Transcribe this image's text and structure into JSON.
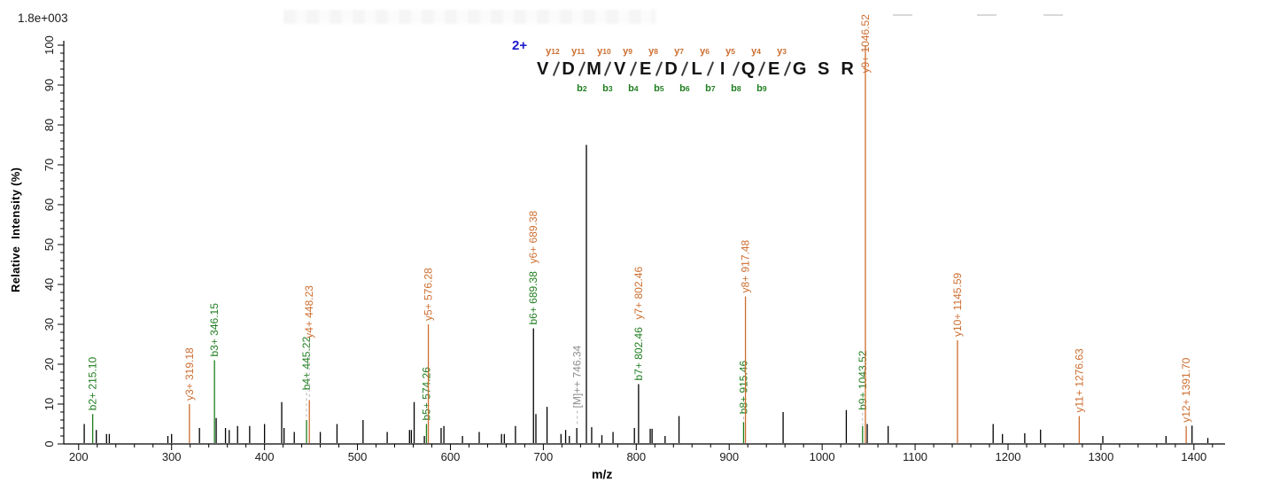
{
  "chart_data": {
    "type": "bar",
    "subtype": "ms2-mass-spectrum",
    "title": "",
    "xlabel": "m/z",
    "ylabel": "Relative  Intensity (%)",
    "base_peak_intensity": "1.8e+003",
    "xlim": [
      184,
      1434
    ],
    "ylim": [
      0,
      100
    ],
    "x_ticks": {
      "major_start": 200,
      "major_end": 1400,
      "major_step": 100,
      "minor_step": 20,
      "minor_end": 1420
    },
    "y_ticks": {
      "major_step": 10,
      "minor_step": 2
    },
    "grid": "off",
    "colors": {
      "b_ion": "#1e7d1e",
      "y_ion": "#cc6d2f",
      "unmatched": "#000000",
      "precursor_label": "#8c8c8c",
      "leader": "#b5b5b5",
      "charge": "#1a1acc"
    },
    "peptide": {
      "charge_label": "2+",
      "sequence": [
        "V",
        "D",
        "M",
        "V",
        "E",
        "D",
        "L",
        "I",
        "Q",
        "E",
        "G",
        "S",
        "R"
      ],
      "boundaries": [
        {
          "pos": 1,
          "y": "y12"
        },
        {
          "pos": 2,
          "y": "y11",
          "b": "b2"
        },
        {
          "pos": 3,
          "y": "y10",
          "b": "b3"
        },
        {
          "pos": 4,
          "y": "y9",
          "b": "b4"
        },
        {
          "pos": 5,
          "y": "y8",
          "b": "b5"
        },
        {
          "pos": 6,
          "y": "y7",
          "b": "b6"
        },
        {
          "pos": 7,
          "y": "y6",
          "b": "b7"
        },
        {
          "pos": 8,
          "y": "y5",
          "b": "b8"
        },
        {
          "pos": 9,
          "y": "y4",
          "b": "b9"
        },
        {
          "pos": 10,
          "y": "y3"
        }
      ]
    },
    "peaks": [
      {
        "mz": 206,
        "h": 5,
        "type": "none"
      },
      {
        "mz": 215.1,
        "h": 7.5,
        "type": "b",
        "label": "b2+ 215.10"
      },
      {
        "mz": 219,
        "h": 3.5,
        "type": "none"
      },
      {
        "mz": 230,
        "h": 2.5,
        "type": "none"
      },
      {
        "mz": 233,
        "h": 2.5,
        "type": "none"
      },
      {
        "mz": 296,
        "h": 2,
        "type": "none"
      },
      {
        "mz": 300,
        "h": 2.5,
        "type": "none"
      },
      {
        "mz": 319.18,
        "h": 10,
        "type": "y",
        "label": "y3+ 319.18"
      },
      {
        "mz": 330,
        "h": 4,
        "type": "none"
      },
      {
        "mz": 346.15,
        "h": 21,
        "type": "b",
        "label": "b3+ 346.15"
      },
      {
        "mz": 348,
        "h": 6.5,
        "type": "none"
      },
      {
        "mz": 358,
        "h": 4,
        "type": "none"
      },
      {
        "mz": 362,
        "h": 3.5,
        "type": "none"
      },
      {
        "mz": 371,
        "h": 4.5,
        "type": "none"
      },
      {
        "mz": 384,
        "h": 4.5,
        "type": "none"
      },
      {
        "mz": 400,
        "h": 5,
        "type": "none"
      },
      {
        "mz": 418.5,
        "h": 10.5,
        "type": "none"
      },
      {
        "mz": 421,
        "h": 4,
        "type": "none"
      },
      {
        "mz": 432,
        "h": 3,
        "type": "none"
      },
      {
        "mz": 445.22,
        "h": 6,
        "type": "b",
        "label": "b4+ 445.22",
        "label_h": 13.5,
        "leader": true
      },
      {
        "mz": 448.23,
        "h": 11,
        "type": "y",
        "label": "y4+ 448.23",
        "label_h": 26.5,
        "leader": true
      },
      {
        "mz": 460,
        "h": 3,
        "type": "none"
      },
      {
        "mz": 478,
        "h": 5,
        "type": "none"
      },
      {
        "mz": 506,
        "h": 6,
        "type": "none"
      },
      {
        "mz": 532,
        "h": 3,
        "type": "none"
      },
      {
        "mz": 556,
        "h": 3.5,
        "type": "none"
      },
      {
        "mz": 558,
        "h": 3.5,
        "type": "none"
      },
      {
        "mz": 561,
        "h": 10.5,
        "type": "none"
      },
      {
        "mz": 572,
        "h": 2,
        "type": "none"
      },
      {
        "mz": 574.26,
        "h": 5,
        "type": "b",
        "label": "b5+ 574.26"
      },
      {
        "mz": 576.28,
        "h": 30,
        "type": "y",
        "label": "y5+ 576.28"
      },
      {
        "mz": 590,
        "h": 4,
        "type": "none"
      },
      {
        "mz": 593,
        "h": 4.5,
        "type": "none"
      },
      {
        "mz": 613,
        "h": 2,
        "type": "none"
      },
      {
        "mz": 631,
        "h": 3,
        "type": "none"
      },
      {
        "mz": 655,
        "h": 2.5,
        "type": "none"
      },
      {
        "mz": 658,
        "h": 2.5,
        "type": "none"
      },
      {
        "mz": 670,
        "h": 4.5,
        "type": "none"
      },
      {
        "mz": 689.38,
        "h": 29,
        "type": "both",
        "label": "b6+ 689.38",
        "label2": "y6+ 689.38"
      },
      {
        "mz": 692,
        "h": 7.5,
        "type": "none"
      },
      {
        "mz": 704,
        "h": 9.3,
        "type": "none"
      },
      {
        "mz": 719,
        "h": 2.5,
        "type": "none"
      },
      {
        "mz": 724,
        "h": 3.5,
        "type": "none"
      },
      {
        "mz": 728,
        "h": 2,
        "type": "none"
      },
      {
        "mz": 736,
        "h": 4,
        "type": "none"
      },
      {
        "mz": 746.34,
        "h": 75,
        "type": "precursor",
        "label": "[M]++ 746.34",
        "label_h": 9,
        "leader": true,
        "label_mz": 736.5,
        "leader_end_h": 4.5
      },
      {
        "mz": 752,
        "h": 4.2,
        "type": "none"
      },
      {
        "mz": 763,
        "h": 2.2,
        "type": "none"
      },
      {
        "mz": 775,
        "h": 3,
        "type": "none"
      },
      {
        "mz": 798,
        "h": 4,
        "type": "none"
      },
      {
        "mz": 802.46,
        "h": 15,
        "type": "both",
        "label": "b7+ 802.46",
        "label2": "y7+ 802.46"
      },
      {
        "mz": 815,
        "h": 3.8,
        "type": "none"
      },
      {
        "mz": 817,
        "h": 3.8,
        "type": "none"
      },
      {
        "mz": 831,
        "h": 2,
        "type": "none"
      },
      {
        "mz": 846,
        "h": 7,
        "type": "none"
      },
      {
        "mz": 915.46,
        "h": 5.5,
        "type": "b",
        "label": "b8+ 915.46",
        "label_h": 7.5,
        "leader": true
      },
      {
        "mz": 917.48,
        "h": 37,
        "type": "y",
        "label": "y8+ 917.48"
      },
      {
        "mz": 958,
        "h": 8,
        "type": "none"
      },
      {
        "mz": 1026,
        "h": 8.5,
        "type": "none"
      },
      {
        "mz": 1043.52,
        "h": 4.5,
        "type": "b",
        "label": "b9+ 1043.52",
        "label_h": 8.5,
        "leader": true
      },
      {
        "mz": 1046.52,
        "h": 100,
        "type": "y",
        "label": "y9+ 1046.52",
        "label_h": 93
      },
      {
        "mz": 1048.5,
        "h": 5,
        "type": "none"
      },
      {
        "mz": 1071,
        "h": 4.5,
        "type": "none"
      },
      {
        "mz": 1145.59,
        "h": 26,
        "type": "y",
        "label": "y10+ 1145.59"
      },
      {
        "mz": 1184,
        "h": 5,
        "type": "none"
      },
      {
        "mz": 1194,
        "h": 2.5,
        "type": "none"
      },
      {
        "mz": 1218,
        "h": 2.7,
        "type": "none"
      },
      {
        "mz": 1235,
        "h": 3.6,
        "type": "none"
      },
      {
        "mz": 1276.63,
        "h": 7,
        "type": "y",
        "label": "y11+ 1276.63"
      },
      {
        "mz": 1302,
        "h": 2,
        "type": "none"
      },
      {
        "mz": 1370,
        "h": 2,
        "type": "none"
      },
      {
        "mz": 1391.7,
        "h": 4.5,
        "type": "y",
        "label": "y12+ 1391.70"
      },
      {
        "mz": 1398,
        "h": 4.6,
        "type": "none"
      },
      {
        "mz": 1415,
        "h": 1.5,
        "type": "none"
      }
    ]
  }
}
